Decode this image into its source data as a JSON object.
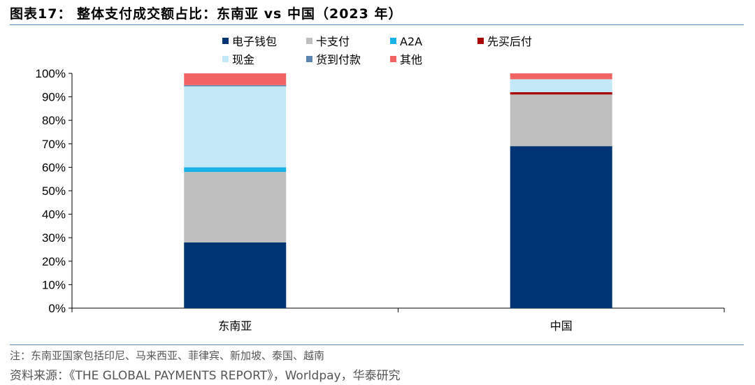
{
  "header": {
    "title": "图表17： 整体支付成交额占比：东南亚 vs 中国（2023 年）"
  },
  "footer": {
    "note": "注：东南亚国家包括印尼、马来西亚、菲律宾、新加坡、泰国、越南",
    "source": "资料来源：《THE GLOBAL PAYMENTS REPORT》，Worldpay，华泰研究"
  },
  "chart_data": {
    "type": "bar",
    "stacked": true,
    "categories": [
      "东南亚",
      "中国"
    ],
    "ylim": [
      0,
      100
    ],
    "yticks": [
      "0%",
      "10%",
      "20%",
      "30%",
      "40%",
      "50%",
      "60%",
      "70%",
      "80%",
      "90%",
      "100%"
    ],
    "legend_position": "top",
    "series": [
      {
        "name": "电子钱包",
        "color": "#003474",
        "values": [
          28,
          69
        ]
      },
      {
        "name": "卡支付",
        "color": "#bfbfbf",
        "values": [
          30,
          22
        ]
      },
      {
        "name": "A2A",
        "color": "#1ab0e8",
        "values": [
          2,
          0
        ]
      },
      {
        "name": "先买后付",
        "color": "#a80000",
        "values": [
          0,
          1
        ]
      },
      {
        "name": "现金",
        "color": "#c3e9f8",
        "values": [
          34.5,
          5.5
        ]
      },
      {
        "name": "货到付款",
        "color": "#5b84b1",
        "values": [
          0.5,
          0
        ]
      },
      {
        "name": "其他",
        "color": "#f26464",
        "values": [
          5,
          2.5
        ]
      }
    ]
  }
}
